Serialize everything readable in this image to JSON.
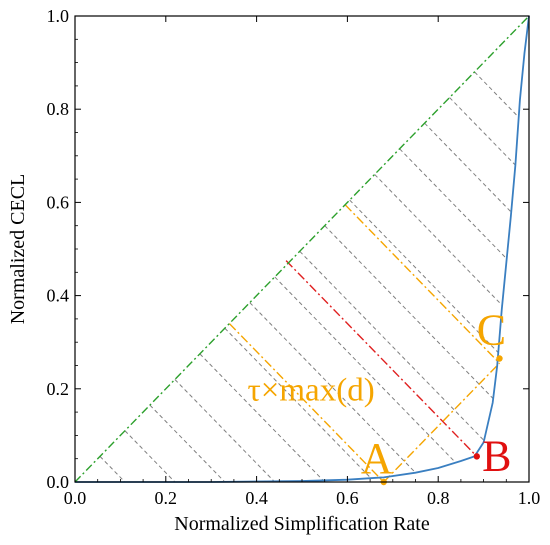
{
  "chart_data": {
    "type": "line",
    "xlabel": "Normalized Simplification Rate",
    "ylabel": "Normalized CECL",
    "xlim": [
      0.0,
      1.0
    ],
    "ylim": [
      0.0,
      1.0
    ],
    "xticks": [
      "0.0",
      "0.2",
      "0.4",
      "0.6",
      "0.8",
      "1.0"
    ],
    "yticks": [
      "0.0",
      "0.2",
      "0.4",
      "0.6",
      "0.8",
      "1.0"
    ],
    "grid": false,
    "series": [
      {
        "color": "#3a7fc1",
        "style": "solid",
        "x": [
          0.0,
          0.3,
          0.5,
          0.6,
          0.68,
          0.75,
          0.8,
          0.85,
          0.88,
          0.9,
          0.92,
          0.93,
          0.94,
          0.95,
          0.96,
          0.97,
          0.98,
          0.99,
          1.0
        ],
        "y": [
          0.0,
          0.0,
          0.002,
          0.005,
          0.01,
          0.02,
          0.03,
          0.045,
          0.055,
          0.085,
          0.17,
          0.25,
          0.37,
          0.47,
          0.57,
          0.68,
          0.82,
          0.92,
          1.0
        ]
      },
      {
        "color": "#2ca02c",
        "style": "dashdot",
        "x": [
          0.0,
          1.0
        ],
        "y": [
          0.0,
          1.0
        ]
      }
    ],
    "diagonal_hatch": {
      "color": "#808080",
      "style": "dashed",
      "offsets": [
        0.11,
        0.22,
        0.33,
        0.44,
        0.55,
        0.66,
        0.77,
        0.88,
        0.99,
        1.1,
        1.21,
        1.32,
        1.43,
        1.54,
        1.65,
        1.76
      ]
    },
    "points": [
      {
        "label": "A",
        "x": 0.68,
        "y": 0.0,
        "color": "#f5a500"
      },
      {
        "label": "B",
        "x": 0.885,
        "y": 0.055,
        "color": "#e01010"
      },
      {
        "label": "C",
        "x": 0.935,
        "y": 0.265,
        "color": "#f5a500"
      }
    ],
    "annotation_lines": [
      {
        "color": "#e02020",
        "from": [
          0.465,
          0.475
        ],
        "to": [
          0.885,
          0.055
        ]
      },
      {
        "color": "#f5a500",
        "from": [
          0.34,
          0.34
        ],
        "to": [
          0.68,
          0.0
        ]
      },
      {
        "color": "#f5a500",
        "from": [
          0.595,
          0.595
        ],
        "to": [
          0.935,
          0.255
        ]
      },
      {
        "color": "#f5a500",
        "from": [
          0.68,
          0.0
        ],
        "to": [
          0.935,
          0.255
        ]
      }
    ],
    "annotation_text": "τ×max(d)",
    "annotation_anchor": {
      "x": 0.38,
      "y": 0.175
    },
    "annotation_color": "#f5a500"
  }
}
